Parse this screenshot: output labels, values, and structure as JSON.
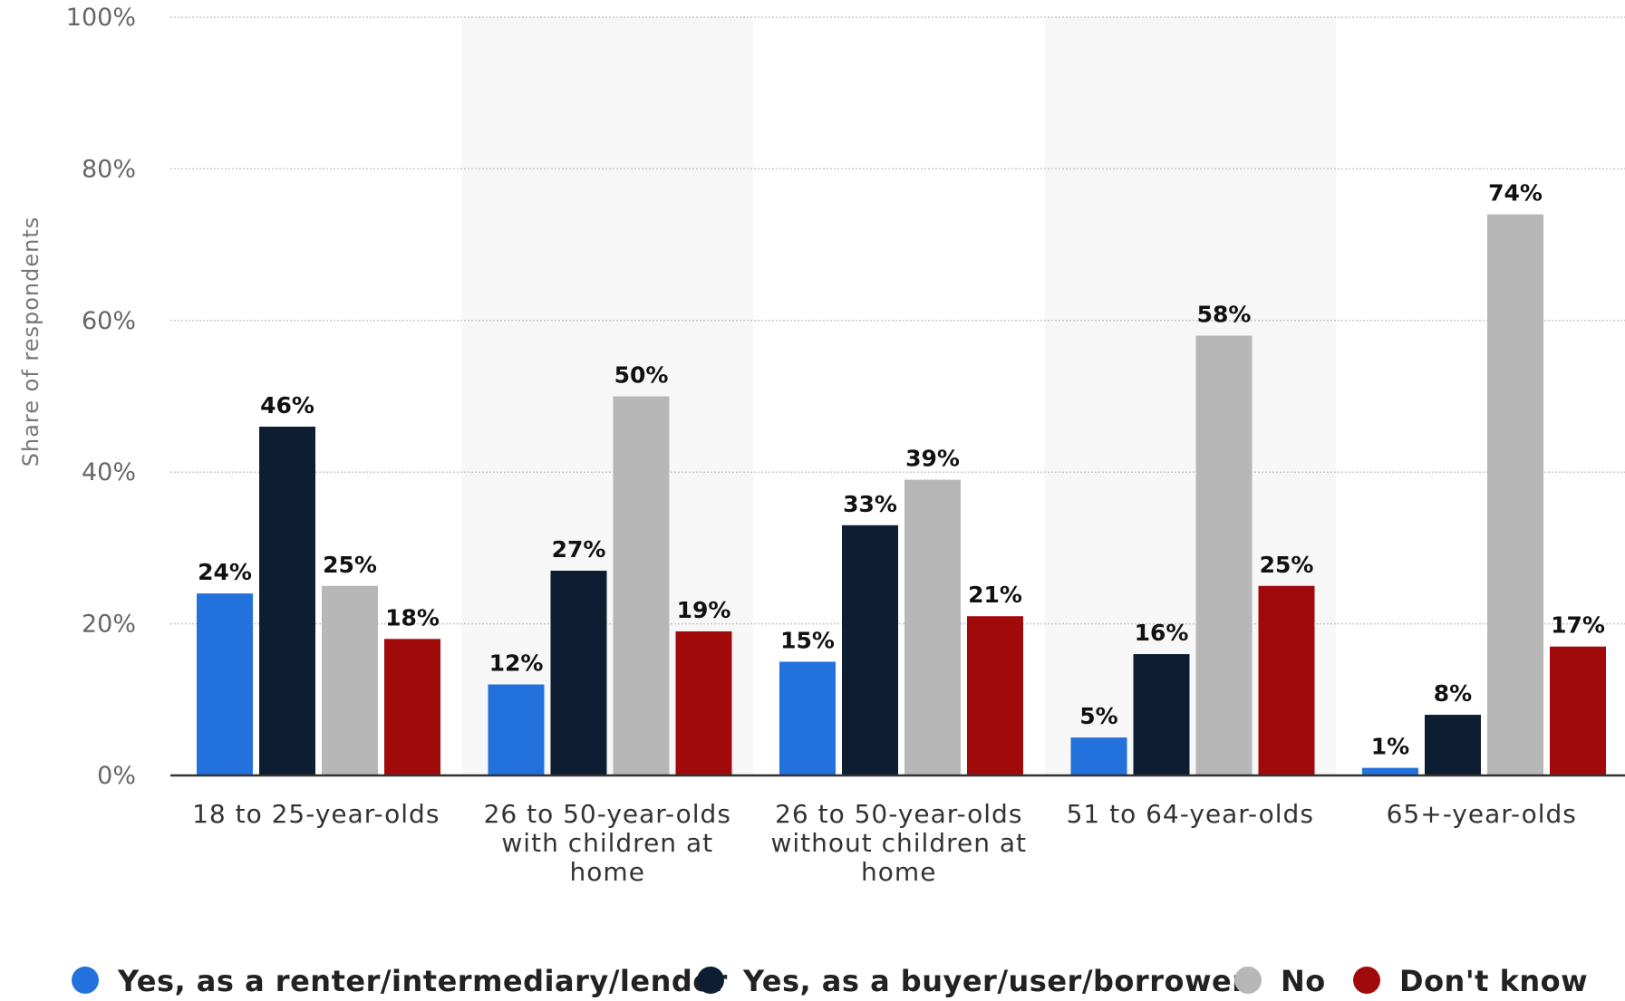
{
  "chart_data": {
    "type": "bar",
    "title": "",
    "xlabel": "",
    "ylabel": "Share of respondents",
    "ylim": [
      0,
      100
    ],
    "yticks": [
      0,
      20,
      40,
      60,
      80,
      100
    ],
    "ytick_labels": [
      "0%",
      "20%",
      "40%",
      "60%",
      "80%",
      "100%"
    ],
    "value_suffix": "%",
    "grid": true,
    "legend_position": "bottom",
    "categories": [
      "18 to 25-year-olds",
      "26 to 50-year-olds with children at home",
      "26 to 50-year-olds without children at home",
      "51 to 64-year-olds",
      "65+-year-olds"
    ],
    "category_label_lines": [
      [
        "18 to 25-year-olds"
      ],
      [
        "26 to 50-year-olds",
        "with children at",
        "home"
      ],
      [
        "26 to 50-year-olds",
        "without children at",
        "home"
      ],
      [
        "51 to 64-year-olds"
      ],
      [
        "65+-year-olds"
      ]
    ],
    "series": [
      {
        "name": "Yes, as a renter/intermediary/lender",
        "color": "#2371dc",
        "values": [
          24,
          12,
          15,
          5,
          1
        ]
      },
      {
        "name": "Yes, as a buyer/user/borrower",
        "color": "#0d1e33",
        "values": [
          46,
          27,
          33,
          16,
          8
        ]
      },
      {
        "name": "No",
        "color": "#b7b7b7",
        "values": [
          25,
          50,
          39,
          58,
          74
        ]
      },
      {
        "name": "Don't know",
        "color": "#a10a0a",
        "values": [
          18,
          19,
          21,
          25,
          17
        ]
      }
    ]
  }
}
